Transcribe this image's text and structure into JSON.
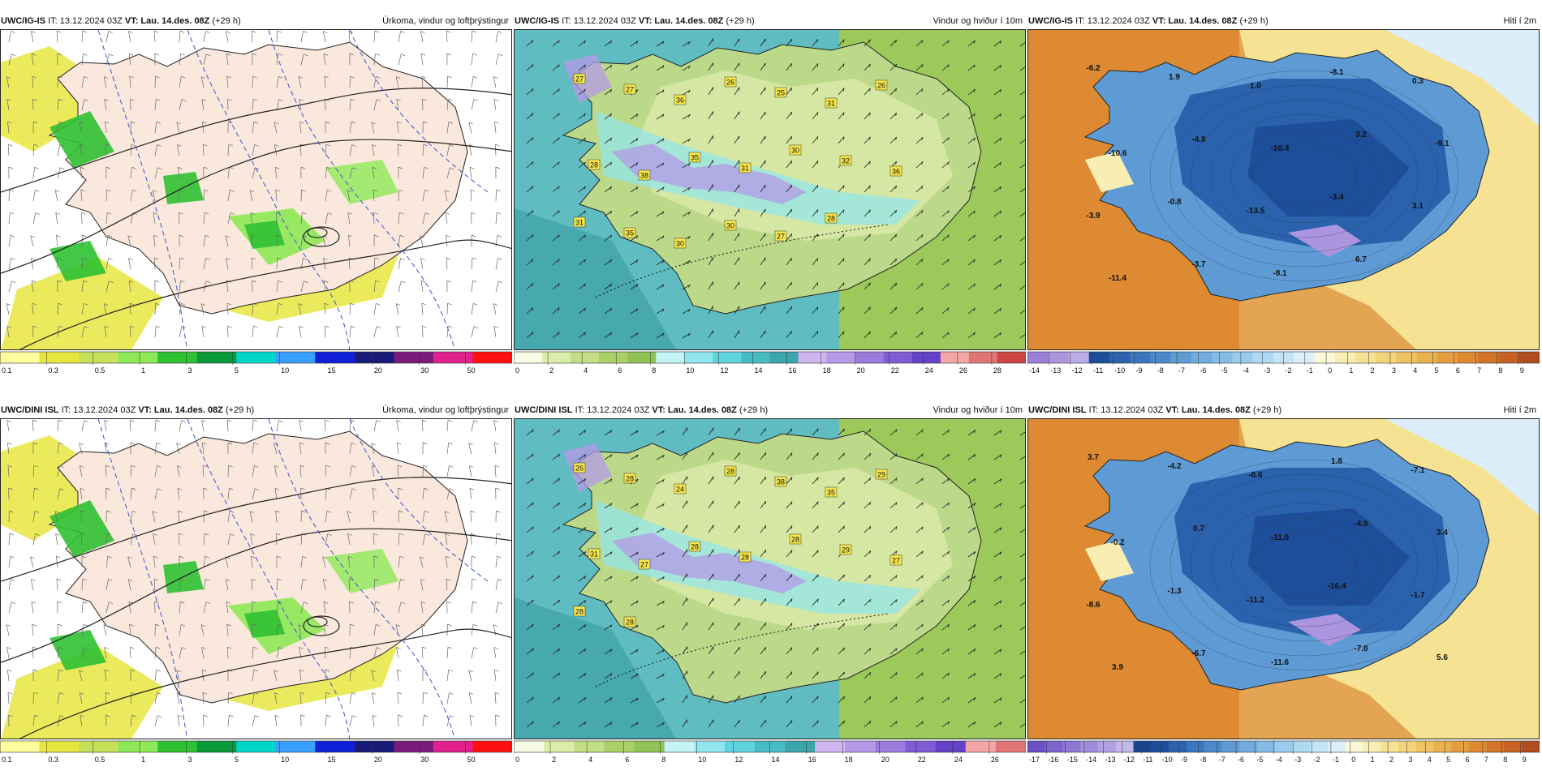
{
  "panels": [
    {
      "id": "p00",
      "row": 0,
      "col": 0,
      "kind": "precip",
      "model": "UWC/IG-IS",
      "it": "IT: 13.12.2024 03Z",
      "vt": "VT: Lau. 14.des. 08Z",
      "lead": "(+29 h)",
      "title": "Úrkoma, vindur og loftþrýstingur",
      "colorbar": {
        "colors": [
          "#fdfd9e",
          "#e6e63f",
          "#c6e05a",
          "#8ee857",
          "#2fc132",
          "#0a9a3c",
          "#00d6c8",
          "#3aa0ff",
          "#1020d8",
          "#181a78",
          "#7a1a7a",
          "#e0208c",
          "#ff1010"
        ],
        "ticks": [
          "0.1",
          "0.3",
          "0.5",
          "1",
          "3",
          "5",
          "10",
          "15",
          "20",
          "30",
          "50"
        ]
      }
    },
    {
      "id": "p01",
      "row": 0,
      "col": 1,
      "kind": "wind",
      "model": "UWC/IG-IS",
      "it": "IT: 13.12.2024 03Z",
      "vt": "VT: Lau. 14.des. 08Z",
      "lead": "(+29 h)",
      "title": "Vindur og hviður í 10m",
      "labels": [
        "27",
        "27",
        "36",
        "26",
        "25",
        "31",
        "26",
        "28",
        "38",
        "35",
        "31",
        "30",
        "32",
        "36",
        "31",
        "35",
        "30",
        "30",
        "27",
        "28"
      ],
      "colorbar": {
        "colors": [
          "#f6fbe6",
          "#dcedaa",
          "#c3df85",
          "#aad06a",
          "#90c255",
          "#c5f4f6",
          "#8fe6ef",
          "#5fd3de",
          "#47bcc3",
          "#3aa5aa",
          "#cdb5f0",
          "#b49ae8",
          "#9a7cde",
          "#7f5cd4",
          "#6441c7",
          "#f4a6a6",
          "#e07575",
          "#cc4444"
        ],
        "ticks": [
          "0",
          "2",
          "4",
          "6",
          "8",
          "10",
          "12",
          "14",
          "16",
          "18",
          "20",
          "22",
          "24",
          "26",
          "28"
        ]
      }
    },
    {
      "id": "p02",
      "row": 0,
      "col": 2,
      "kind": "temp",
      "model": "UWC/IG-IS",
      "it": "IT: 13.12.2024 03Z",
      "vt": "VT: Lau. 14.des. 08Z",
      "lead": "(+29 h)",
      "title": "Hiti í 2m",
      "labels": [
        "-6.2",
        "1.9",
        "1.0",
        "-8.1",
        "0.3",
        "-10.6",
        "-4.9",
        "-10.4",
        "3.2",
        "-9.1",
        "-3.9",
        "-0.8",
        "-13.5",
        "-3.4",
        "3.1",
        "-11.4",
        "-3.7",
        "-8.1",
        "6.7"
      ],
      "colorbar": {
        "colors": [
          "#9b7fd9",
          "#ab95df",
          "#bbabe6",
          "#1d4e9a",
          "#2a62ad",
          "#3a76bf",
          "#4c89cb",
          "#5e9bd5",
          "#70acde",
          "#84bce6",
          "#98cbed",
          "#aed9f2",
          "#c4e5f6",
          "#dceefa",
          "#fbf7d8",
          "#f8eeb4",
          "#f5e293",
          "#f2d47a",
          "#eec363",
          "#e9b24f",
          "#e49e3f",
          "#dd8a33",
          "#d2752a",
          "#c76124",
          "#b04d1e"
        ],
        "ticks": [
          "-14",
          "-13",
          "-12",
          "-11",
          "-10",
          "-9",
          "-8",
          "-7",
          "-6",
          "-5",
          "-4",
          "-3",
          "-2",
          "-1",
          "0",
          "1",
          "2",
          "3",
          "4",
          "5",
          "6",
          "7",
          "8",
          "9"
        ]
      }
    },
    {
      "id": "p10",
      "row": 1,
      "col": 0,
      "kind": "precip",
      "model": "UWC/DINI ISL",
      "it": "IT: 13.12.2024 03Z",
      "vt": "VT: Lau. 14.des. 08Z",
      "lead": "(+29 h)",
      "title": "Úrkoma, vindur og loftþrýstingur",
      "colorbar": {
        "colors": [
          "#fdfd9e",
          "#e6e63f",
          "#c6e05a",
          "#8ee857",
          "#2fc132",
          "#0a9a3c",
          "#00d6c8",
          "#3aa0ff",
          "#1020d8",
          "#181a78",
          "#7a1a7a",
          "#e0208c",
          "#ff1010"
        ],
        "ticks": [
          "0.1",
          "0.3",
          "0.5",
          "1",
          "3",
          "5",
          "10",
          "15",
          "20",
          "30",
          "50"
        ]
      }
    },
    {
      "id": "p11",
      "row": 1,
      "col": 1,
      "kind": "wind",
      "model": "UWC/DINI ISL",
      "it": "IT: 13.12.2024 03Z",
      "vt": "VT: Lau. 14.des. 08Z",
      "lead": "(+29 h)",
      "title": "Vindur og hviður í 10m",
      "labels": [
        "26",
        "28",
        "24",
        "28",
        "38",
        "35",
        "29",
        "31",
        "27",
        "28",
        "28",
        "28",
        "29",
        "27",
        "28",
        "28"
      ],
      "colorbar": {
        "colors": [
          "#f6fbe6",
          "#dcedaa",
          "#c3df85",
          "#aad06a",
          "#90c255",
          "#c5f4f6",
          "#8fe6ef",
          "#5fd3de",
          "#47bcc3",
          "#3aa5aa",
          "#cdb5f0",
          "#b49ae8",
          "#9a7cde",
          "#7f5cd4",
          "#6441c7",
          "#f4a6a6",
          "#e07575"
        ],
        "ticks": [
          "0",
          "2",
          "4",
          "6",
          "8",
          "10",
          "12",
          "14",
          "16",
          "18",
          "20",
          "22",
          "24",
          "26"
        ]
      }
    },
    {
      "id": "p12",
      "row": 1,
      "col": 2,
      "kind": "temp",
      "model": "UWC/DINI ISL",
      "it": "IT: 13.12.2024 03Z",
      "vt": "VT: Lau. 14.des. 08Z",
      "lead": "(+29 h)",
      "title": "Hiti í 2m",
      "labels": [
        "3.7",
        "-4.2",
        "-8.6",
        "1.8",
        "-7.1",
        "-0.2",
        "0.7",
        "-11.0",
        "-4.9",
        "3.4",
        "-8.6",
        "-1.3",
        "-11.2",
        "-16.4",
        "-1.7",
        "3.9",
        "-6.7",
        "-11.6",
        "-7.8",
        "5.6"
      ],
      "colorbar": {
        "colors": [
          "#6b4fc4",
          "#7d63cc",
          "#8f78d4",
          "#a18ddb",
          "#b3a2e3",
          "#c4b7ea",
          "#1a468f",
          "#1d4e9a",
          "#2a62ad",
          "#3a76bf",
          "#4c89cb",
          "#5e9bd5",
          "#70acde",
          "#84bce6",
          "#98cbed",
          "#aed9f2",
          "#c4e5f6",
          "#dceefa",
          "#fbf7d8",
          "#f8eeb4",
          "#f5e293",
          "#f2d47a",
          "#eec363",
          "#e9b24f",
          "#e49e3f",
          "#dd8a33",
          "#d2752a",
          "#c76124",
          "#b04d1e"
        ],
        "ticks": [
          "-17",
          "-16",
          "-15",
          "-14",
          "-13",
          "-12",
          "-11",
          "-10",
          "-9",
          "-8",
          "-7",
          "-6",
          "-5",
          "-4",
          "-3",
          "-2",
          "-1",
          "0",
          "1",
          "2",
          "3",
          "4",
          "5",
          "6",
          "7",
          "8",
          "9"
        ]
      }
    }
  ]
}
